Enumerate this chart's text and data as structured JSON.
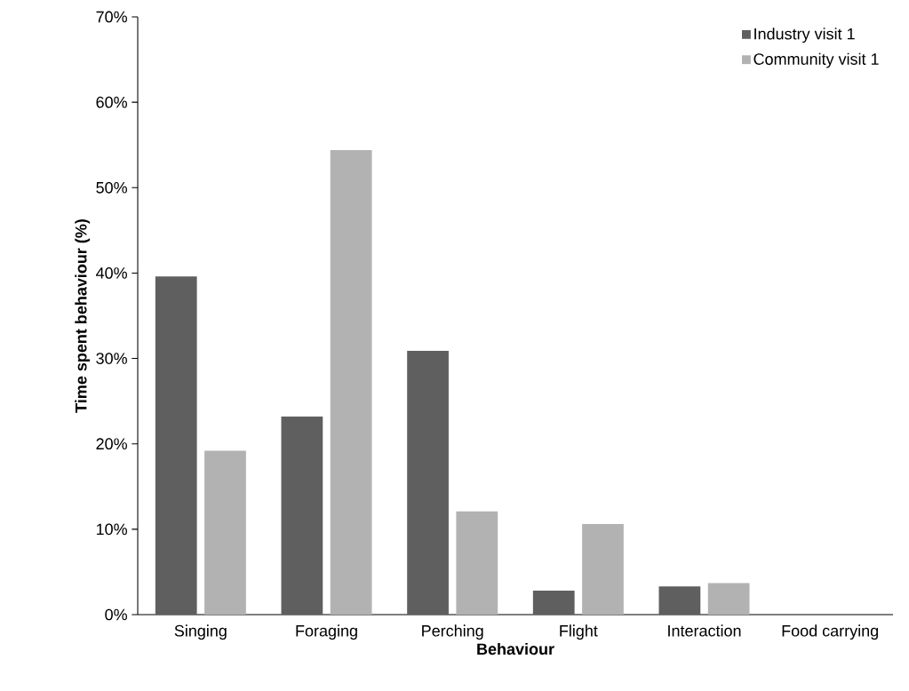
{
  "chart_data": {
    "type": "bar",
    "xlabel": "Behaviour",
    "ylabel": "Time spent behaviour (%)",
    "categories": [
      "Singing",
      "Foraging",
      "Perching",
      "Flight",
      "Interaction",
      "Food carrying"
    ],
    "series": [
      {
        "name": "Industry visit 1",
        "color": "#5f5f5f",
        "values": [
          39.6,
          23.2,
          30.9,
          2.8,
          3.3,
          0
        ]
      },
      {
        "name": "Community  visit 1",
        "color": "#b2b2b2",
        "values": [
          19.2,
          54.4,
          12.1,
          10.6,
          3.7,
          0
        ]
      }
    ],
    "ylim": [
      0,
      70
    ],
    "yticks": [
      {
        "value": 0,
        "label": "0%"
      },
      {
        "value": 10,
        "label": "10%"
      },
      {
        "value": 20,
        "label": "20%"
      },
      {
        "value": 30,
        "label": "30%"
      },
      {
        "value": 40,
        "label": "40%"
      },
      {
        "value": 50,
        "label": "50%"
      },
      {
        "value": 60,
        "label": "60%"
      },
      {
        "value": 70,
        "label": "70%"
      }
    ],
    "grid": false,
    "legend": "top right"
  }
}
